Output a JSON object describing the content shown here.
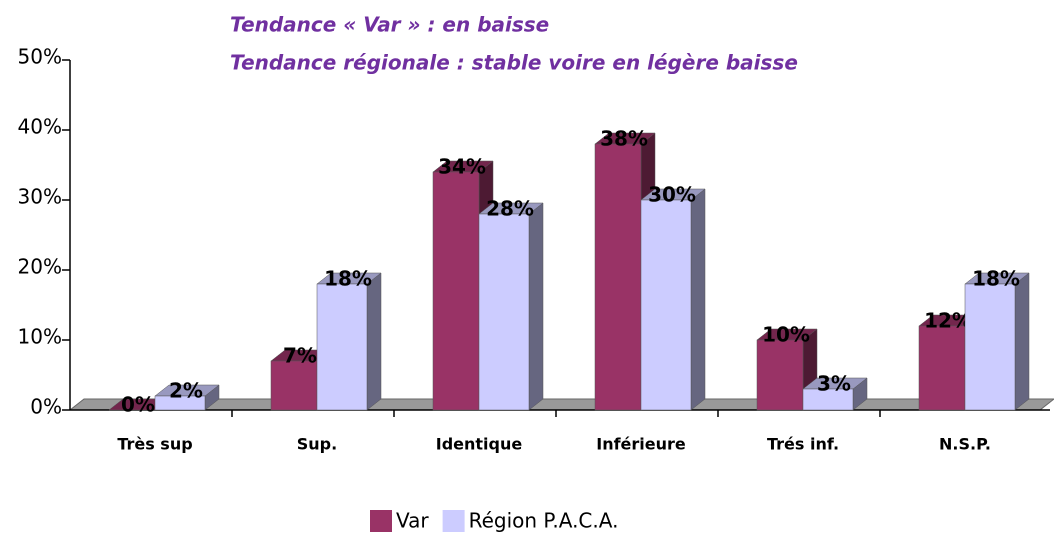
{
  "chart_data": {
    "type": "bar3d",
    "annotations": [
      "Tendance « Var » : en baisse",
      "Tendance régionale : stable voire en légère baisse"
    ],
    "categories": [
      "Très sup",
      "Sup.",
      "Identique",
      "Inférieure",
      "Trés inf.",
      "N.S.P."
    ],
    "series": [
      {
        "name": "Var",
        "color": "#993366",
        "values": [
          0,
          7,
          34,
          38,
          10,
          12
        ],
        "value_labels": [
          "0%",
          "7%",
          "34%",
          "38%",
          "10%",
          "12%"
        ]
      },
      {
        "name": "Région P.A.C.A.",
        "color": "#ccccff",
        "values": [
          2,
          18,
          28,
          30,
          3,
          18
        ],
        "value_labels": [
          "2%",
          "18%",
          "28%",
          "30%",
          "3%",
          "18%"
        ]
      }
    ],
    "ylim": [
      0,
      50
    ],
    "yticks": [
      {
        "value": 0,
        "label": "0%"
      },
      {
        "value": 10,
        "label": "10%"
      },
      {
        "value": 20,
        "label": "20%"
      },
      {
        "value": 30,
        "label": "30%"
      },
      {
        "value": 40,
        "label": "40%"
      },
      {
        "value": 50,
        "label": "50%"
      }
    ],
    "legend": "bottom"
  }
}
